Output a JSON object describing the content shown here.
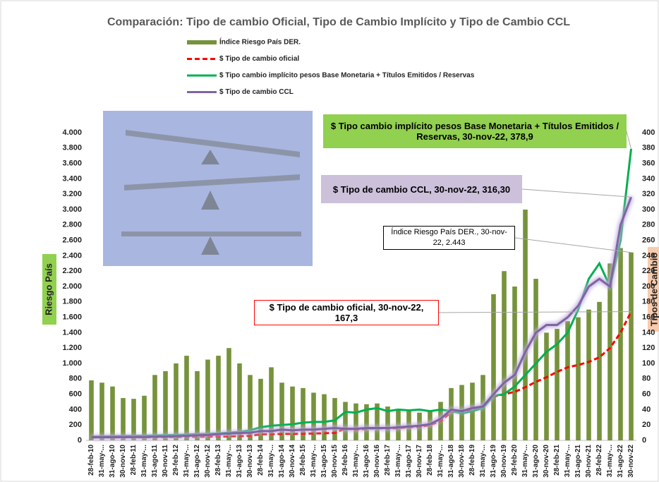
{
  "chart_data": {
    "type": "bar-line",
    "title": "Comparación: Tipo de cambio Oficial, Tipo de Cambio Implícito y Tipo de Cambio CCL",
    "y_label": "Riesgo País",
    "y2_label": "Tipos de Cambio",
    "categories": [
      "28-feb-10",
      "31-may-...",
      "31-ago-10",
      "30-nov-10",
      "28-feb-11",
      "31-may-...",
      "31-ago-11",
      "30-nov-11",
      "29-feb-12",
      "31-may-...",
      "31-ago-12",
      "30-nov-12",
      "28-feb-13",
      "31-may-...",
      "31-ago-13",
      "30-nov-13",
      "28-feb-14",
      "31-may-...",
      "31-ago-14",
      "30-nov-14",
      "28-feb-15",
      "31-may-...",
      "31-ago-15",
      "30-nov-15",
      "29-feb-16",
      "31-may-...",
      "31-ago-16",
      "30-nov-16",
      "28-feb-17",
      "31-may-...",
      "31-ago-17",
      "30-nov-17",
      "28-feb-18",
      "31-may-...",
      "31-ago-18",
      "30-nov-18",
      "28-feb-19",
      "31-may-...",
      "31-ago-19",
      "30-nov-19",
      "29-feb-20",
      "31-may-...",
      "31-ago-20",
      "30-nov-20",
      "28-feb-21",
      "31-may-...",
      "31-ago-21",
      "30-nov-21",
      "28-feb-22",
      "31-may-...",
      "31-ago-22",
      "30-nov-22"
    ],
    "series": [
      {
        "name": "Índice Riesgo País DER.",
        "type": "bar",
        "color": "#76933c",
        "axis": "y",
        "values": [
          780,
          750,
          700,
          550,
          540,
          580,
          850,
          900,
          1000,
          1100,
          900,
          1050,
          1100,
          1200,
          1000,
          850,
          800,
          950,
          750,
          700,
          680,
          620,
          600,
          550,
          500,
          480,
          470,
          480,
          440,
          410,
          380,
          360,
          390,
          500,
          680,
          720,
          750,
          850,
          1900,
          2200,
          2000,
          3000,
          2100,
          1400,
          1450,
          1550,
          1600,
          1700,
          1800,
          2300,
          2500,
          2443
        ]
      },
      {
        "name": "$ Tipo de cambio oficial",
        "type": "line",
        "dash": true,
        "color": "#ff0000",
        "axis": "y2",
        "values": [
          3.8,
          3.9,
          3.95,
          3.98,
          4.0,
          4.08,
          4.2,
          4.3,
          4.4,
          4.5,
          4.7,
          4.8,
          5.0,
          5.2,
          5.6,
          6.0,
          8.0,
          8.1,
          8.4,
          8.5,
          8.7,
          9.0,
          9.3,
          9.7,
          15.5,
          14.0,
          15.0,
          15.8,
          15.5,
          16.0,
          17.3,
          17.5,
          20,
          25,
          37,
          38,
          40,
          44,
          57,
          60,
          63,
          69,
          76,
          82,
          89,
          95,
          98,
          102,
          108,
          120,
          140,
          167.3
        ]
      },
      {
        "name": "$ Tipo cambio implícito pesos Base Monetaria + Títulos Emitidos / Reservas",
        "type": "line",
        "color": "#00b050",
        "axis": "y2",
        "values": [
          5,
          5.2,
          5.4,
          5.6,
          5.8,
          6,
          6.3,
          6.8,
          7,
          7.5,
          8,
          8.5,
          9,
          10,
          11,
          13,
          17,
          19,
          20,
          21,
          23,
          24,
          24,
          26,
          37,
          36,
          40,
          42,
          38,
          40,
          39,
          40,
          38,
          40,
          38,
          35,
          38,
          42,
          58,
          60,
          70,
          85,
          100,
          115,
          125,
          140,
          170,
          210,
          230,
          200,
          260,
          378.9
        ]
      },
      {
        "name": "$ Tipo de cambio CCL",
        "type": "line",
        "glow": true,
        "color": "#8064a2",
        "axis": "y2",
        "values": [
          4,
          4,
          4.1,
          4.2,
          4.3,
          4.4,
          4.8,
          5,
          5.5,
          6,
          6.5,
          7,
          8,
          9,
          9.5,
          10,
          12,
          12,
          14,
          13,
          14,
          14,
          15,
          16,
          15,
          15,
          16,
          16,
          16,
          17,
          18,
          19,
          21,
          28,
          40,
          38,
          42,
          44,
          60,
          75,
          85,
          115,
          140,
          150,
          150,
          160,
          175,
          200,
          210,
          200,
          280,
          316.3
        ]
      }
    ],
    "ylim": [
      0,
      4000
    ],
    "yticks": [
      {
        "value": 0,
        "label": "0"
      },
      {
        "value": 200,
        "label": "200"
      },
      {
        "value": 400,
        "label": "400"
      },
      {
        "value": 600,
        "label": "600"
      },
      {
        "value": 800,
        "label": "800"
      },
      {
        "value": 1000,
        "label": "1.000"
      },
      {
        "value": 1200,
        "label": "1.200"
      },
      {
        "value": 1400,
        "label": "1.400"
      },
      {
        "value": 1600,
        "label": "1.600"
      },
      {
        "value": 1800,
        "label": "1.800"
      },
      {
        "value": 2000,
        "label": "2.000"
      },
      {
        "value": 2200,
        "label": "2.200"
      },
      {
        "value": 2400,
        "label": "2.400"
      },
      {
        "value": 2600,
        "label": "2.600"
      },
      {
        "value": 2800,
        "label": "2.800"
      },
      {
        "value": 3000,
        "label": "3.000"
      },
      {
        "value": 3200,
        "label": "3.200"
      },
      {
        "value": 3400,
        "label": "3.400"
      },
      {
        "value": 3600,
        "label": "3.600"
      },
      {
        "value": 3800,
        "label": "3.800"
      },
      {
        "value": 4000,
        "label": "4.000"
      }
    ],
    "y2lim": [
      0,
      400
    ],
    "y2ticks": [
      0,
      20,
      40,
      60,
      80,
      100,
      120,
      140,
      160,
      180,
      200,
      220,
      240,
      260,
      280,
      300,
      320,
      340,
      360,
      380,
      400
    ],
    "annotations": [
      {
        "series": 2,
        "text": "$ Tipo cambio implícito pesos Base Monetaria + Títulos Emitidos / Reservas, 30-nov-22,  378,9"
      },
      {
        "series": 3,
        "text": "$ Tipo de cambio CCL, 30-nov-22,  316,30"
      },
      {
        "series": 0,
        "text": "Índice Riesgo País DER., 30-nov-22, 2.443"
      },
      {
        "series": 1,
        "text": "$ Tipo de cambio oficial, 30-nov-22, 167,3"
      }
    ]
  }
}
